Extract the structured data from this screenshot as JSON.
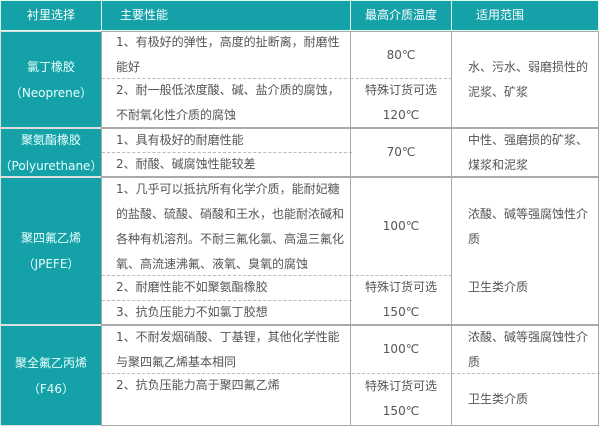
{
  "header": [
    "衬里选择",
    "主要性能",
    "最高介质温度",
    "适用范围"
  ],
  "rows": [
    {
      "name": "氯丁橡胶",
      "sub": "（Neoprene）",
      "props": [
        "1、有极好的弹性，高度的扯断离，耐磨性能好",
        "2、耐一般低浓度酸、碱、盐介质的腐蚀，不耐氧化性介质的腐蚀"
      ],
      "temps": [
        "80℃",
        "特殊订货可选",
        "120℃"
      ],
      "scope": [
        "水、污水、弱磨损性的泥浆、矿浆"
      ]
    },
    {
      "name": "聚氨酯橡胶",
      "sub": "（Polyurethane）",
      "props": [
        "1、具有极好的耐磨性能",
        "2、耐酸、碱腐蚀性能较差"
      ],
      "temps": [
        "70℃"
      ],
      "scope": [
        "中性、强磨损的矿浆、煤浆和泥浆"
      ]
    },
    {
      "name": "聚四氟乙烯",
      "sub": "（JPEFE）",
      "props": [
        "1、几乎可以抵抗所有化学介质，能耐妃糖的盐酸、硫酸、硝酸和王水，也能耐浓碱和各种有机溶剂。不耐三氟化氯、高温三氟化氧、高流速沸氟、液氧、臭氧的腐蚀",
        "2、耐磨性能不如聚氨酯橡胶",
        "3、抗负压能力不如氯丁胶想"
      ],
      "temps": [
        "100℃",
        "特殊订货可选",
        "150℃"
      ],
      "scope": [
        "浓酸、碱等强腐蚀性介质",
        "卫生类介质"
      ]
    },
    {
      "name": "聚全氟乙丙烯",
      "sub": "（F46）",
      "props": [
        "1、不耐发烟硝酸、丁基锂，其他化学性能与聚四氟乙烯基本相同",
        "2、抗负压能力高于聚四氟乙烯"
      ],
      "temps": [
        "100℃",
        "特殊订货可选",
        "150℃"
      ],
      "scope": [
        "浓酸、碱等强腐蚀性介质",
        "卫生类介质"
      ]
    }
  ],
  "colors": {
    "header_bg": "#14a2a8",
    "grid": "#aaaaaa"
  }
}
